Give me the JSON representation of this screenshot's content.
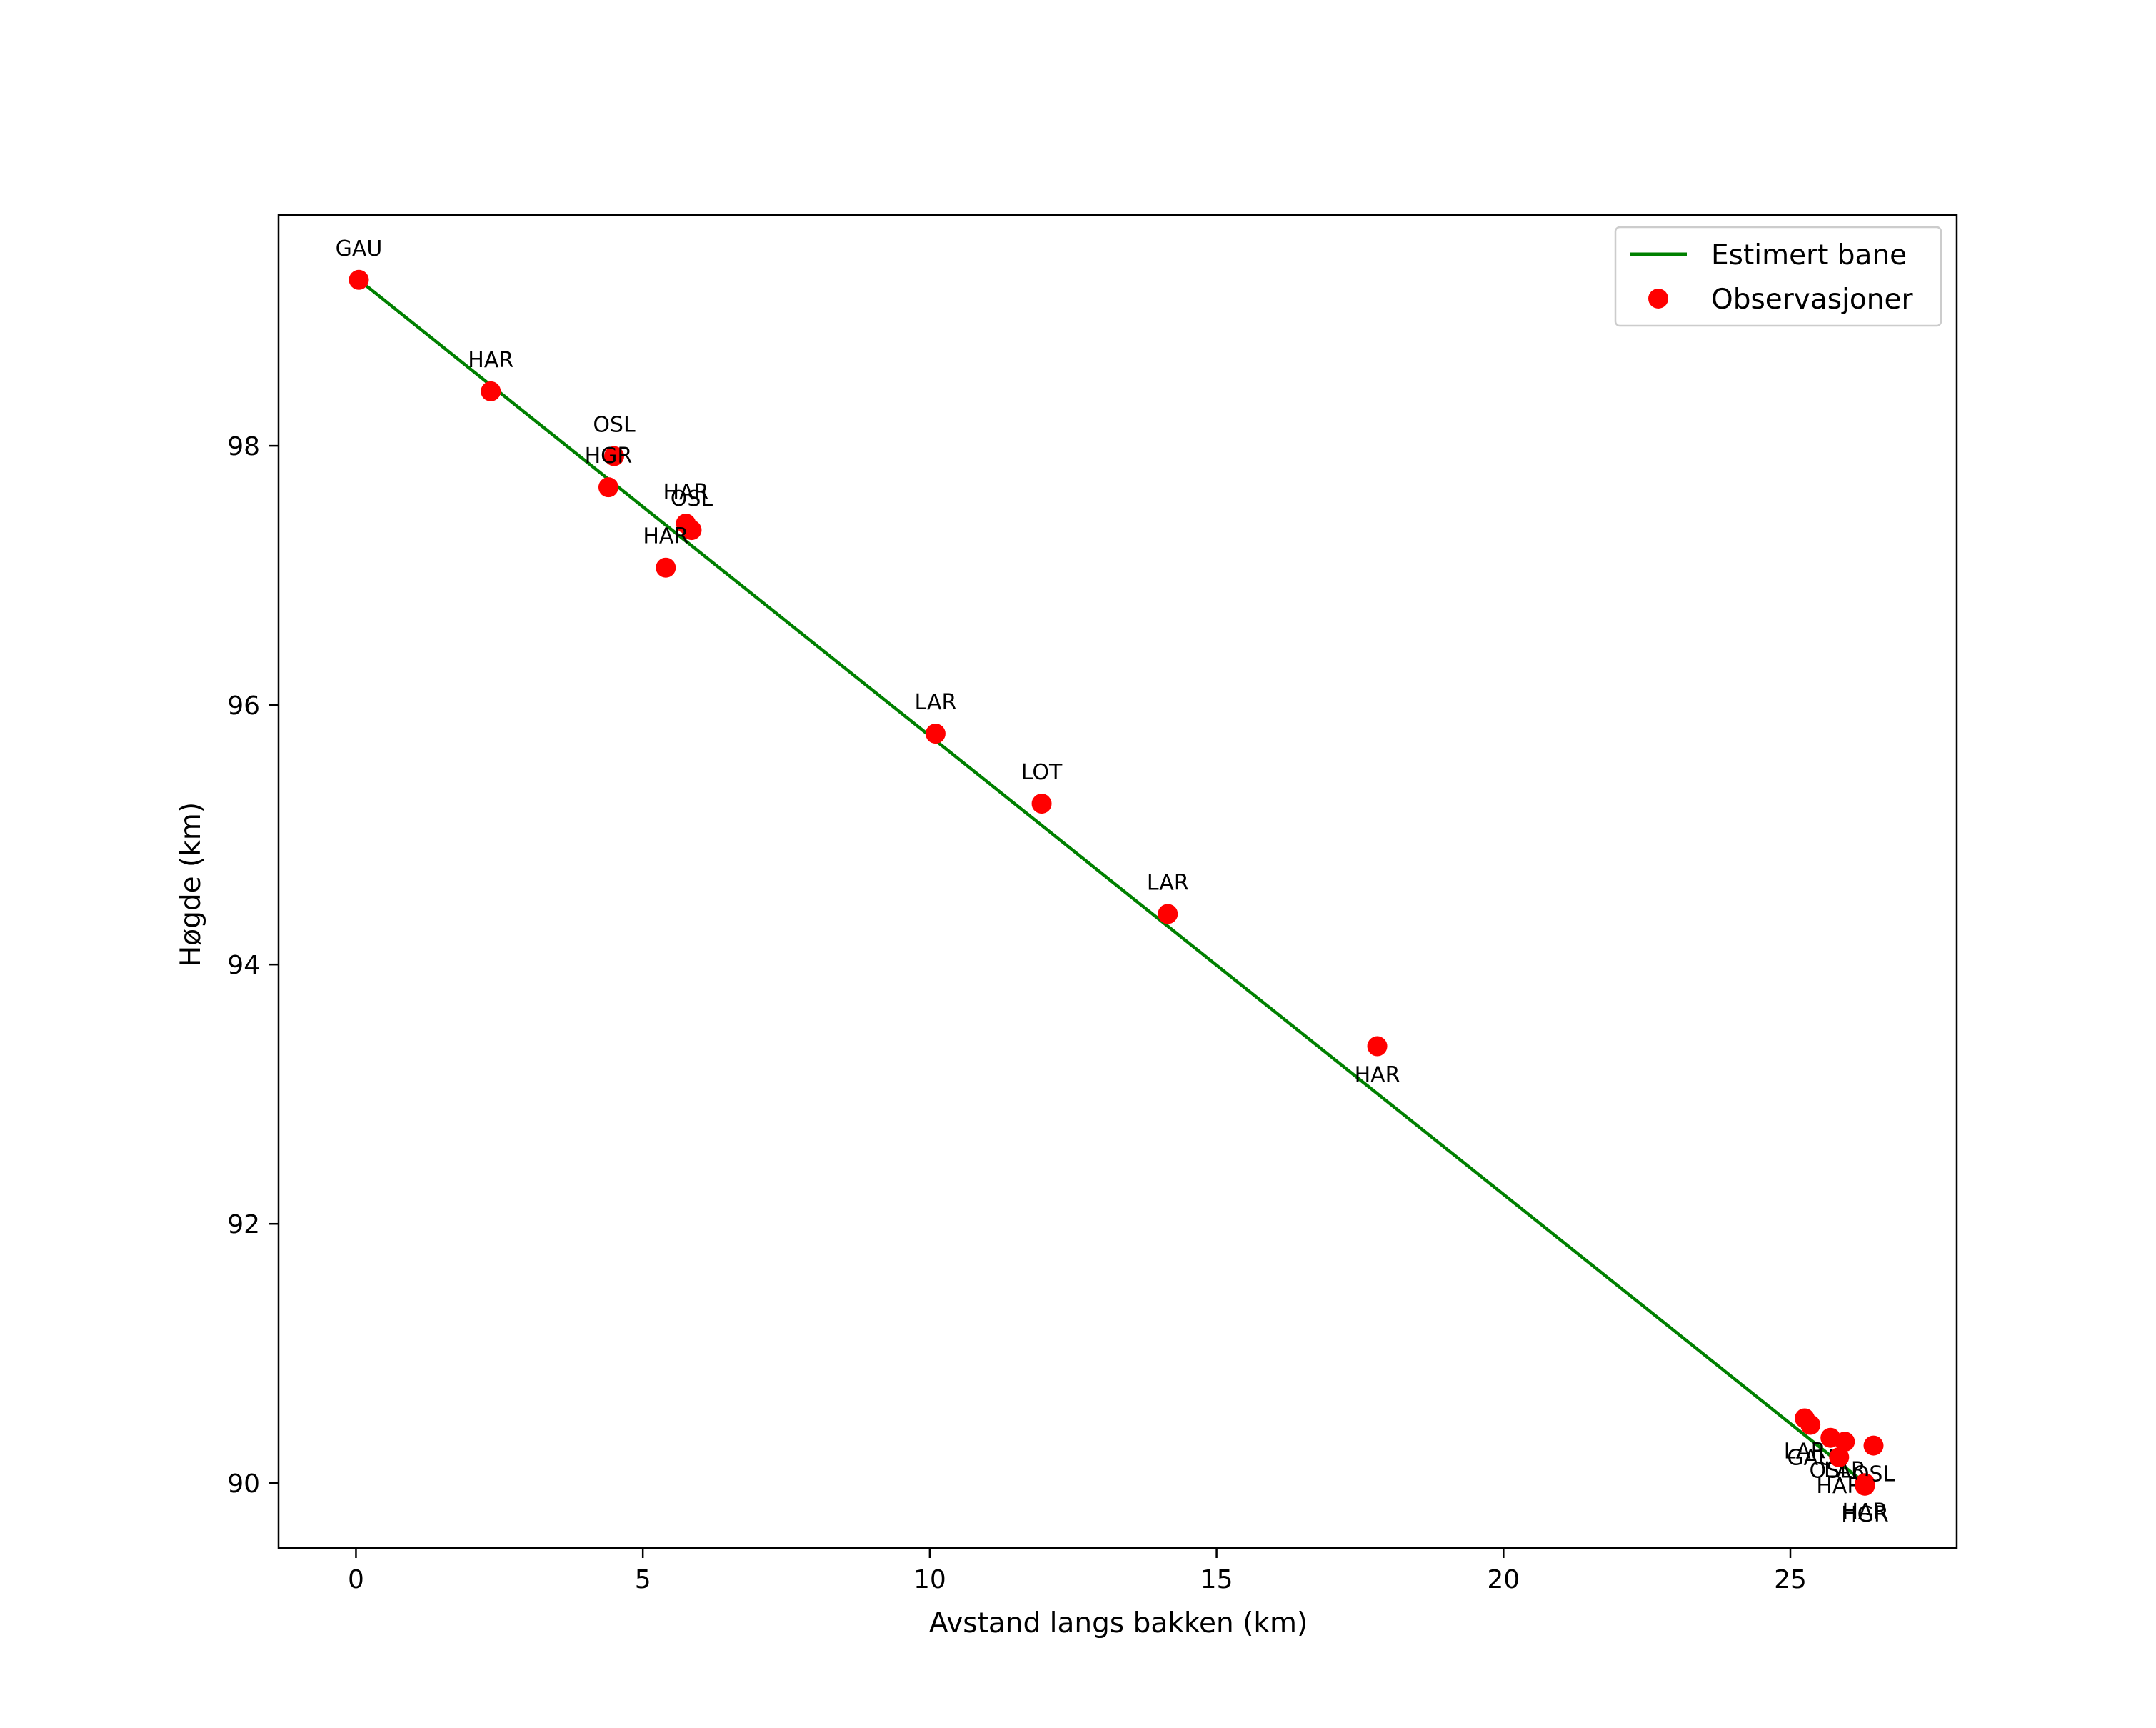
{
  "chart_data": {
    "type": "scatter",
    "title": "",
    "xlabel": "Avstand langs bakken (km)",
    "ylabel": "Høgde (km)",
    "xlim": [
      -1.35,
      27.9
    ],
    "ylim": [
      89.5,
      99.78
    ],
    "xticks": [
      0,
      5,
      10,
      15,
      20,
      25
    ],
    "yticks": [
      90,
      92,
      94,
      96,
      98
    ],
    "grid": false,
    "legend_position": "top-right",
    "series": [
      {
        "name": "Estimert bane",
        "kind": "line",
        "color": "#008000",
        "x": [
          0.05,
          26.3
        ],
        "y": [
          99.28,
          90.0
        ]
      },
      {
        "name": "Observasjoner",
        "kind": "scatter",
        "color": "#ff0000",
        "points": [
          {
            "x": 0.05,
            "y": 99.28,
            "label": "GAU",
            "label_pos": "above"
          },
          {
            "x": 2.35,
            "y": 98.42,
            "label": "HAR",
            "label_pos": "above"
          },
          {
            "x": 4.5,
            "y": 97.92,
            "label": "OSL",
            "label_pos": "above"
          },
          {
            "x": 4.4,
            "y": 97.68,
            "label": "HGR",
            "label_pos": "above"
          },
          {
            "x": 5.75,
            "y": 97.4,
            "label": "HAR",
            "label_pos": "above"
          },
          {
            "x": 5.85,
            "y": 97.35,
            "label": "OSL",
            "label_pos": "above"
          },
          {
            "x": 5.4,
            "y": 97.06,
            "label": "HAR",
            "label_pos": "above"
          },
          {
            "x": 10.1,
            "y": 95.78,
            "label": "LAR",
            "label_pos": "above"
          },
          {
            "x": 11.95,
            "y": 95.24,
            "label": "LOT",
            "label_pos": "above"
          },
          {
            "x": 14.15,
            "y": 94.39,
            "label": "LAR",
            "label_pos": "above"
          },
          {
            "x": 17.8,
            "y": 93.37,
            "label": "HAR",
            "label_pos": "below"
          },
          {
            "x": 25.25,
            "y": 90.5,
            "label": "LAR",
            "label_pos": "below-left"
          },
          {
            "x": 25.35,
            "y": 90.45,
            "label": "GAU",
            "label_pos": "below-left"
          },
          {
            "x": 25.7,
            "y": 90.35,
            "label": "OSL",
            "label_pos": "below-left"
          },
          {
            "x": 25.95,
            "y": 90.32,
            "label": "LAR",
            "label_pos": "below"
          },
          {
            "x": 25.85,
            "y": 90.2,
            "label": "HAR",
            "label_pos": "below"
          },
          {
            "x": 26.3,
            "y": 90.0,
            "label": "HAR",
            "label_pos": "below"
          },
          {
            "x": 26.45,
            "y": 90.29,
            "label": "OSL",
            "label_pos": "below"
          },
          {
            "x": 26.3,
            "y": 89.98,
            "label": "HGR",
            "label_pos": "below"
          }
        ]
      }
    ]
  }
}
